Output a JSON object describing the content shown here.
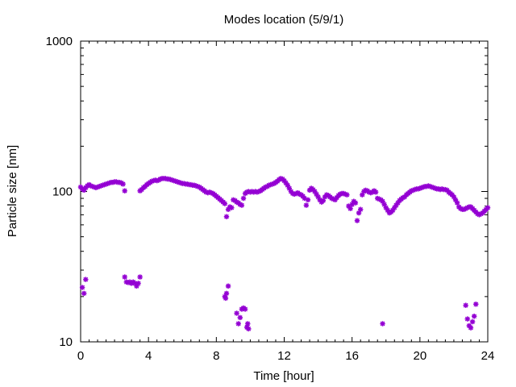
{
  "chart_data": {
    "type": "scatter",
    "title": "Modes location (5/9/1)",
    "xlabel": "Time [hour]",
    "ylabel": "Particle size [nm]",
    "xlim": [
      0,
      24
    ],
    "ylim": [
      10,
      1000
    ],
    "yscale": "log",
    "grid": false,
    "marker_color": "#9400d3",
    "xticks": [
      0,
      4,
      8,
      12,
      16,
      20,
      24
    ],
    "xtick_labels": [
      "0",
      "4",
      "8",
      "12",
      "16",
      "20",
      "24"
    ],
    "yticks": [
      10,
      100,
      1000
    ],
    "ytick_labels": [
      "10",
      "100",
      "1000"
    ],
    "series": [
      {
        "points": [
          [
            0.0,
            107
          ],
          [
            0.1,
            104
          ],
          [
            0.2,
            102
          ],
          [
            0.3,
            106
          ],
          [
            0.4,
            109
          ],
          [
            0.5,
            111
          ],
          [
            0.6,
            109
          ],
          [
            0.7,
            108
          ],
          [
            0.8,
            107
          ],
          [
            0.9,
            106
          ],
          [
            1.0,
            107
          ],
          [
            1.1,
            108
          ],
          [
            1.2,
            109
          ],
          [
            1.3,
            110
          ],
          [
            1.4,
            111
          ],
          [
            1.5,
            112
          ],
          [
            1.6,
            113
          ],
          [
            1.7,
            114
          ],
          [
            1.8,
            115
          ],
          [
            1.9,
            115
          ],
          [
            2.0,
            116
          ],
          [
            2.1,
            116
          ],
          [
            2.2,
            115
          ],
          [
            2.3,
            115
          ],
          [
            2.4,
            114
          ],
          [
            2.5,
            112
          ],
          [
            2.6,
            101
          ],
          [
            3.5,
            101
          ],
          [
            3.6,
            103
          ],
          [
            3.7,
            106
          ],
          [
            3.8,
            108
          ],
          [
            3.9,
            111
          ],
          [
            4.0,
            113
          ],
          [
            4.1,
            115
          ],
          [
            4.2,
            117
          ],
          [
            4.3,
            118
          ],
          [
            4.4,
            119
          ],
          [
            4.5,
            118
          ],
          [
            4.6,
            119
          ],
          [
            4.7,
            121
          ],
          [
            4.8,
            122
          ],
          [
            4.9,
            122
          ],
          [
            5.0,
            122
          ],
          [
            5.1,
            121
          ],
          [
            5.2,
            121
          ],
          [
            5.3,
            120
          ],
          [
            5.4,
            119
          ],
          [
            5.5,
            118
          ],
          [
            5.6,
            117
          ],
          [
            5.7,
            116
          ],
          [
            5.8,
            115
          ],
          [
            5.9,
            114
          ],
          [
            6.0,
            113
          ],
          [
            6.1,
            113
          ],
          [
            6.2,
            112
          ],
          [
            6.3,
            112
          ],
          [
            6.4,
            111
          ],
          [
            6.5,
            111
          ],
          [
            6.6,
            110
          ],
          [
            6.7,
            110
          ],
          [
            6.8,
            109
          ],
          [
            6.9,
            108
          ],
          [
            7.0,
            107
          ],
          [
            7.1,
            105
          ],
          [
            7.2,
            103
          ],
          [
            7.3,
            101
          ],
          [
            7.4,
            99
          ],
          [
            7.5,
            98
          ],
          [
            7.6,
            99
          ],
          [
            7.7,
            98
          ],
          [
            7.8,
            97
          ],
          [
            7.9,
            95
          ],
          [
            8.0,
            93
          ],
          [
            8.1,
            91
          ],
          [
            8.2,
            89
          ],
          [
            8.3,
            87
          ],
          [
            8.4,
            85
          ],
          [
            8.5,
            83
          ],
          [
            8.6,
            68
          ],
          [
            8.7,
            76
          ],
          [
            8.8,
            79
          ],
          [
            8.9,
            78
          ],
          [
            9.0,
            88
          ],
          [
            9.1,
            87
          ],
          [
            9.2,
            85
          ],
          [
            9.3,
            84
          ],
          [
            9.4,
            82
          ],
          [
            9.5,
            81
          ],
          [
            9.6,
            90
          ],
          [
            9.7,
            97
          ],
          [
            9.8,
            99
          ],
          [
            9.9,
            100
          ],
          [
            10.0,
            99
          ],
          [
            10.1,
            100
          ],
          [
            10.2,
            99
          ],
          [
            10.3,
            100
          ],
          [
            10.4,
            99
          ],
          [
            10.5,
            100
          ],
          [
            10.6,
            101
          ],
          [
            10.7,
            103
          ],
          [
            10.8,
            105
          ],
          [
            10.9,
            107
          ],
          [
            11.0,
            108
          ],
          [
            11.1,
            110
          ],
          [
            11.2,
            111
          ],
          [
            11.3,
            112
          ],
          [
            11.4,
            113
          ],
          [
            11.5,
            115
          ],
          [
            11.6,
            117
          ],
          [
            11.7,
            120
          ],
          [
            11.8,
            122
          ],
          [
            11.9,
            121
          ],
          [
            12.0,
            118
          ],
          [
            12.1,
            114
          ],
          [
            12.2,
            110
          ],
          [
            12.3,
            105
          ],
          [
            12.4,
            100
          ],
          [
            12.5,
            97
          ],
          [
            12.6,
            96
          ],
          [
            12.7,
            97
          ],
          [
            12.8,
            98
          ],
          [
            12.9,
            96
          ],
          [
            13.0,
            95
          ],
          [
            13.1,
            93
          ],
          [
            13.2,
            90
          ],
          [
            13.3,
            81
          ],
          [
            13.4,
            88
          ],
          [
            13.5,
            102
          ],
          [
            13.6,
            105
          ],
          [
            13.7,
            103
          ],
          [
            13.8,
            100
          ],
          [
            13.9,
            96
          ],
          [
            14.0,
            92
          ],
          [
            14.1,
            88
          ],
          [
            14.2,
            85
          ],
          [
            14.3,
            87
          ],
          [
            14.4,
            92
          ],
          [
            14.5,
            95
          ],
          [
            14.6,
            94
          ],
          [
            14.7,
            92
          ],
          [
            14.8,
            90
          ],
          [
            14.9,
            89
          ],
          [
            15.0,
            88
          ],
          [
            15.1,
            91
          ],
          [
            15.2,
            94
          ],
          [
            15.3,
            96
          ],
          [
            15.4,
            97
          ],
          [
            15.5,
            97
          ],
          [
            15.6,
            96
          ],
          [
            15.7,
            95
          ],
          [
            15.8,
            80
          ],
          [
            15.9,
            77
          ],
          [
            16.0,
            82
          ],
          [
            16.1,
            86
          ],
          [
            16.2,
            84
          ],
          [
            16.3,
            64
          ],
          [
            16.4,
            72
          ],
          [
            16.5,
            76
          ],
          [
            16.6,
            95
          ],
          [
            16.7,
            100
          ],
          [
            16.8,
            102
          ],
          [
            16.9,
            101
          ],
          [
            17.0,
            99
          ],
          [
            17.1,
            98
          ],
          [
            17.2,
            99
          ],
          [
            17.3,
            101
          ],
          [
            17.4,
            99
          ],
          [
            17.5,
            90
          ],
          [
            17.6,
            89
          ],
          [
            17.7,
            88
          ],
          [
            17.8,
            86
          ],
          [
            17.9,
            82
          ],
          [
            18.0,
            78
          ],
          [
            18.1,
            75
          ],
          [
            18.2,
            72
          ],
          [
            18.3,
            73
          ],
          [
            18.4,
            75
          ],
          [
            18.5,
            78
          ],
          [
            18.6,
            81
          ],
          [
            18.7,
            84
          ],
          [
            18.8,
            87
          ],
          [
            18.9,
            89
          ],
          [
            19.0,
            91
          ],
          [
            19.1,
            92
          ],
          [
            19.2,
            95
          ],
          [
            19.3,
            97
          ],
          [
            19.4,
            99
          ],
          [
            19.5,
            101
          ],
          [
            19.6,
            102
          ],
          [
            19.7,
            103
          ],
          [
            19.8,
            104
          ],
          [
            19.9,
            104
          ],
          [
            20.0,
            105
          ],
          [
            20.1,
            106
          ],
          [
            20.2,
            107
          ],
          [
            20.3,
            108
          ],
          [
            20.4,
            108
          ],
          [
            20.5,
            109
          ],
          [
            20.6,
            108
          ],
          [
            20.7,
            107
          ],
          [
            20.8,
            106
          ],
          [
            20.9,
            105
          ],
          [
            21.0,
            104
          ],
          [
            21.1,
            104
          ],
          [
            21.2,
            103
          ],
          [
            21.3,
            104
          ],
          [
            21.4,
            103
          ],
          [
            21.5,
            103
          ],
          [
            21.6,
            102
          ],
          [
            21.7,
            99
          ],
          [
            21.8,
            97
          ],
          [
            21.9,
            95
          ],
          [
            22.0,
            92
          ],
          [
            22.1,
            88
          ],
          [
            22.2,
            84
          ],
          [
            22.3,
            79
          ],
          [
            22.4,
            77
          ],
          [
            22.5,
            76
          ],
          [
            22.6,
            76
          ],
          [
            22.7,
            77
          ],
          [
            22.8,
            78
          ],
          [
            22.9,
            79
          ],
          [
            23.0,
            79
          ],
          [
            23.1,
            77
          ],
          [
            23.2,
            75
          ],
          [
            23.3,
            73
          ],
          [
            23.4,
            71
          ],
          [
            23.5,
            70
          ],
          [
            23.6,
            71
          ],
          [
            23.7,
            72
          ],
          [
            23.8,
            74
          ],
          [
            23.9,
            76
          ],
          [
            24.0,
            78
          ],
          [
            0.1,
            23
          ],
          [
            0.2,
            21
          ],
          [
            0.3,
            26
          ],
          [
            2.6,
            27
          ],
          [
            2.7,
            25
          ],
          [
            2.8,
            24.8
          ],
          [
            2.9,
            25
          ],
          [
            3.0,
            24.5
          ],
          [
            3.1,
            25
          ],
          [
            3.2,
            24.5
          ],
          [
            3.3,
            23.5
          ],
          [
            3.4,
            24.5
          ],
          [
            3.5,
            27
          ],
          [
            8.5,
            20
          ],
          [
            8.55,
            19.5
          ],
          [
            8.6,
            21
          ],
          [
            8.7,
            23.5
          ],
          [
            9.2,
            15.5
          ],
          [
            9.3,
            13.2
          ],
          [
            9.4,
            14.5
          ],
          [
            9.5,
            16.5
          ],
          [
            9.6,
            16.8
          ],
          [
            9.7,
            16.5
          ],
          [
            9.8,
            12.5
          ],
          [
            9.85,
            13.2
          ],
          [
            9.9,
            12.2
          ],
          [
            17.8,
            13.2
          ],
          [
            22.7,
            17.5
          ],
          [
            22.8,
            14.2
          ],
          [
            22.9,
            12.8
          ],
          [
            23.0,
            12.4
          ],
          [
            23.1,
            13.6
          ],
          [
            23.2,
            14.8
          ],
          [
            23.3,
            17.8
          ]
        ]
      }
    ]
  }
}
